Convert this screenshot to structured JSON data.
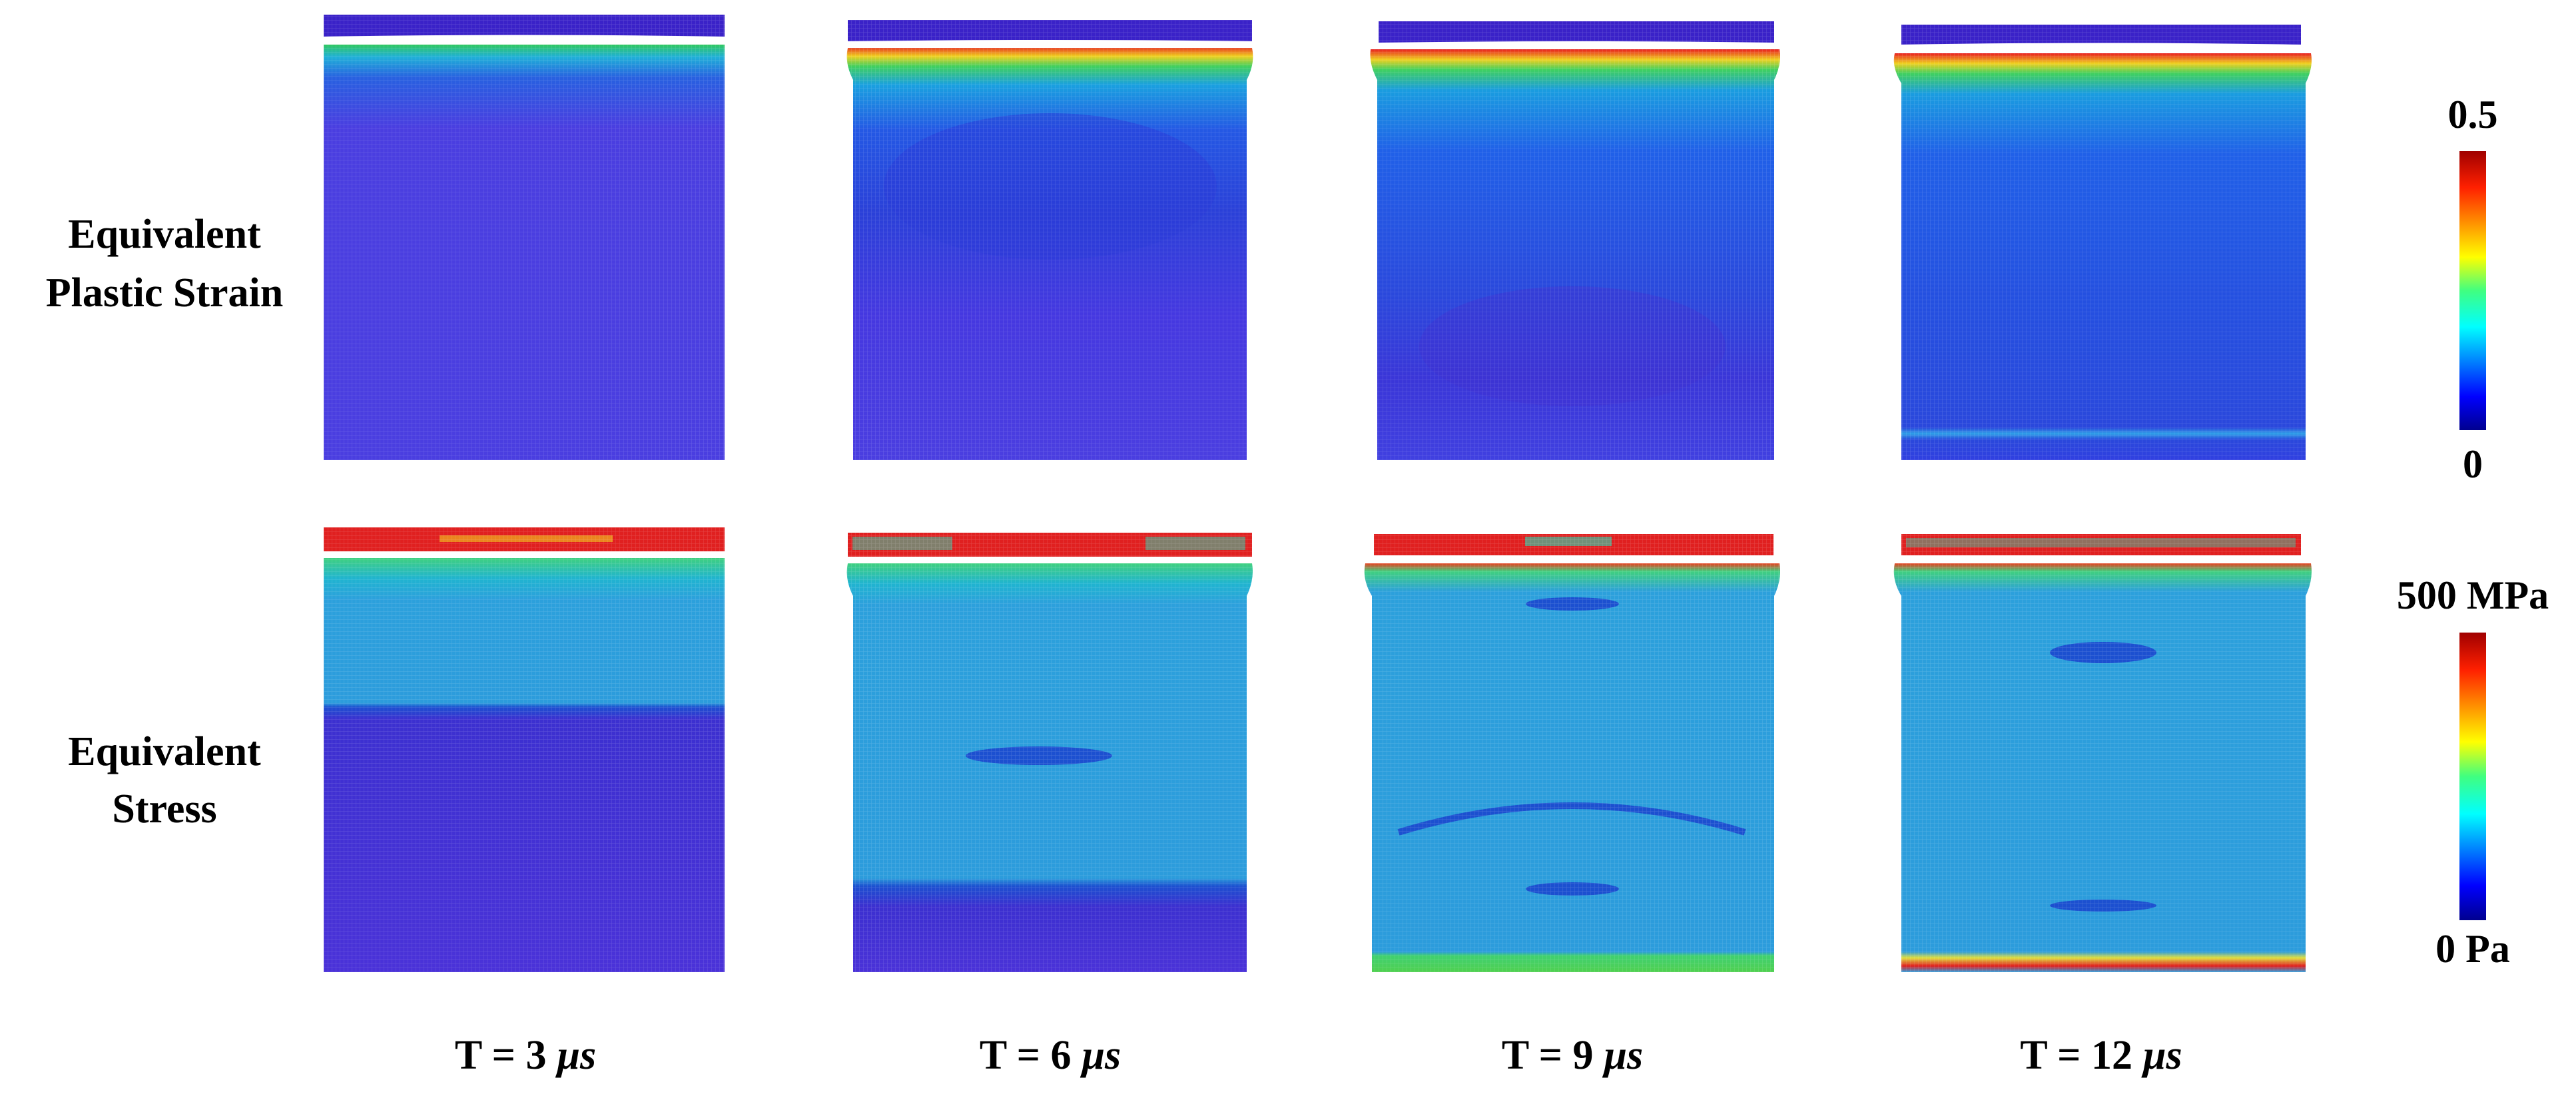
{
  "rows": [
    {
      "label_lines": [
        "Equivalent",
        "Plastic Strain"
      ],
      "scale_max": "0.5",
      "scale_min": "0"
    },
    {
      "label_lines": [
        "Equivalent",
        "Stress"
      ],
      "scale_max": "500 MPa",
      "scale_min": "0 Pa"
    }
  ],
  "columns": [
    {
      "time": "T = 3",
      "unit": "μs"
    },
    {
      "time": "T = 6",
      "unit": "μs"
    },
    {
      "time": "T = 9",
      "unit": "μs"
    },
    {
      "time": "T = 12",
      "unit": "μs"
    }
  ]
}
